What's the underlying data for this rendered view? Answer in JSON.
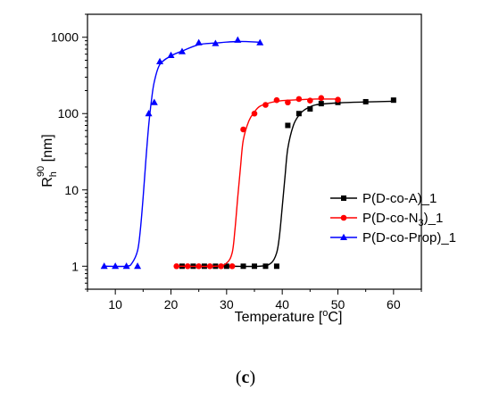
{
  "chart_data": {
    "type": "line",
    "xlabel": {
      "prefix": "Temperature [",
      "sup": "o",
      "suffix": "C]"
    },
    "ylabel": {
      "main": "R",
      "sub": "h",
      "sup": "90",
      "suffix": " [nm]"
    },
    "xlim": [
      5,
      65
    ],
    "ylim": [
      0.5,
      2000
    ],
    "yscale": "log",
    "xticks": [
      10,
      20,
      30,
      40,
      50,
      60
    ],
    "xtick_labels": [
      "10",
      "20",
      "30",
      "40",
      "50",
      "60"
    ],
    "yticks": [
      1,
      10,
      100,
      1000
    ],
    "ytick_labels": [
      "1",
      "10",
      "100",
      "1000"
    ],
    "legend_position": "right",
    "grid": false,
    "panel_label": {
      "open": "(",
      "letter": "c",
      "close": ")"
    },
    "series": [
      {
        "name": {
          "main": "P(D-co-A)_1"
        },
        "color": "#000000",
        "marker": "square",
        "x": [
          22,
          24,
          26,
          28,
          30,
          33,
          35,
          37,
          39,
          41,
          43,
          45,
          47,
          50,
          55,
          60
        ],
        "y": [
          1,
          1,
          1,
          1,
          1,
          1,
          1,
          1,
          1,
          70,
          100,
          115,
          135,
          140,
          143,
          150
        ],
        "curve_x": [
          22,
          30,
          36,
          38,
          39,
          39.5,
          40,
          40.5,
          41,
          42,
          43,
          44,
          46,
          50,
          55,
          60
        ],
        "curve_y": [
          1,
          1,
          1,
          1.1,
          1.5,
          2.5,
          6,
          15,
          35,
          70,
          95,
          112,
          130,
          138,
          142,
          145
        ]
      },
      {
        "name": {
          "main": "P(D-co-N",
          "sub": "3",
          "suffix": ")_1"
        },
        "color": "#ff0000",
        "marker": "circle",
        "x": [
          21,
          23,
          25,
          27,
          29,
          31,
          33,
          35,
          37,
          39,
          41,
          43,
          45,
          47,
          50
        ],
        "y": [
          1,
          1,
          1,
          1,
          1,
          1,
          62,
          100,
          130,
          150,
          140,
          155,
          148,
          160,
          152
        ],
        "curve_x": [
          21,
          28,
          30,
          31,
          31.5,
          32,
          32.5,
          33,
          34,
          35,
          36,
          38,
          40,
          43,
          46,
          50
        ],
        "curve_y": [
          1,
          1,
          1.1,
          1.5,
          3,
          8,
          20,
          45,
          80,
          105,
          125,
          140,
          148,
          152,
          155,
          155
        ]
      },
      {
        "name": {
          "main": "P(D-co-Prop)_1"
        },
        "color": "#0000ff",
        "marker": "triangle",
        "x": [
          8,
          10,
          12,
          14,
          16,
          17,
          18,
          20,
          22,
          25,
          28,
          32,
          36
        ],
        "y": [
          1,
          1,
          1,
          1,
          100,
          140,
          480,
          580,
          650,
          850,
          830,
          920,
          850
        ],
        "curve_x": [
          8,
          12,
          13,
          14,
          14.5,
          15,
          15.5,
          16,
          16.5,
          17,
          18,
          20,
          22,
          25,
          28,
          32,
          36
        ],
        "curve_y": [
          1,
          1,
          1.1,
          1.6,
          3,
          8,
          25,
          70,
          150,
          260,
          440,
          570,
          660,
          800,
          840,
          880,
          860
        ]
      }
    ]
  }
}
